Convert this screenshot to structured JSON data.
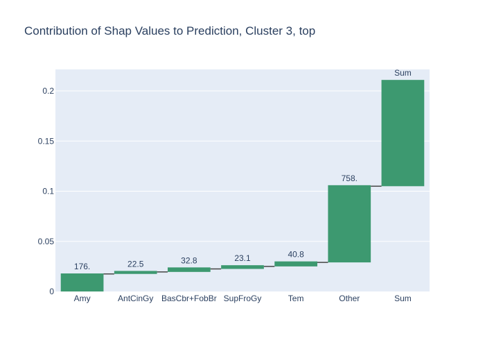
{
  "chart_data": {
    "type": "bar",
    "subtype": "waterfall",
    "title": "Contribution of Shap Values to Prediction, Cluster 3, top",
    "xlabel": "",
    "ylabel": "",
    "categories": [
      "Amy",
      "AntCinGy",
      "BasCbr+FobBr",
      "SupFroGy",
      "Tem",
      "Other",
      "Sum"
    ],
    "bars": [
      {
        "category": "Amy",
        "base": 0,
        "top": 0.018,
        "label": "176."
      },
      {
        "category": "AntCinGy",
        "base": 0.0175,
        "top": 0.0205,
        "label": "22.5"
      },
      {
        "category": "BasCbr+FobBr",
        "base": 0.0195,
        "top": 0.024,
        "label": "32.8"
      },
      {
        "category": "SupFroGy",
        "base": 0.0225,
        "top": 0.0262,
        "label": "23.1"
      },
      {
        "category": "Tem",
        "base": 0.025,
        "top": 0.03,
        "label": "40.8"
      },
      {
        "category": "Other",
        "base": 0.029,
        "top": 0.106,
        "label": "758."
      },
      {
        "category": "Sum",
        "base": 0.105,
        "top": 0.211,
        "label": "Sum"
      }
    ],
    "yticks": [
      {
        "value": 0,
        "label": "0"
      },
      {
        "value": 0.05,
        "label": "0.05"
      },
      {
        "value": 0.1,
        "label": "0.1"
      },
      {
        "value": 0.15,
        "label": "0.15"
      },
      {
        "value": 0.2,
        "label": "0.2"
      }
    ],
    "ylim": [
      0,
      0.2215
    ],
    "grid": true,
    "bar_color": "#3d9970",
    "plot_bg": "#e5ecf6",
    "connector_color": "#444444"
  }
}
